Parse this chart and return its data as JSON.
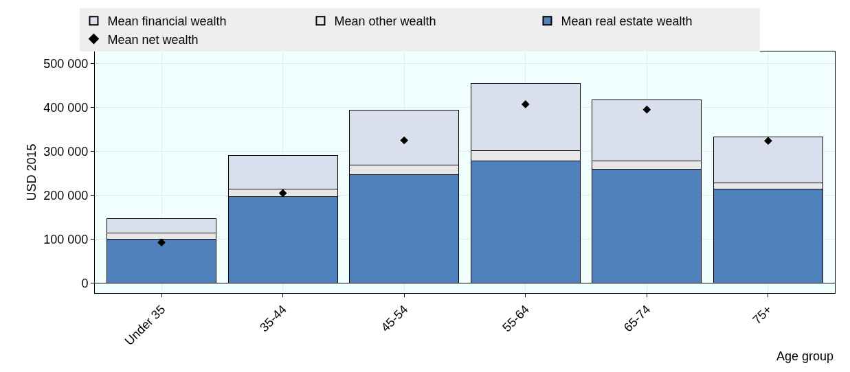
{
  "chart_data": {
    "type": "bar",
    "stacked": true,
    "ylabel": "USD 2015",
    "xlabel": "Age group",
    "categories": [
      "Under 35",
      "35-44",
      "45-54",
      "55-64",
      "65-74",
      "75+"
    ],
    "series": [
      {
        "name": "Mean real estate wealth",
        "color": "#4f81bd",
        "values": [
          101000,
          197000,
          247000,
          279000,
          259000,
          215000
        ]
      },
      {
        "name": "Mean other wealth",
        "color": "#e8e8e8",
        "values": [
          13000,
          18000,
          22000,
          23000,
          20000,
          13000
        ]
      },
      {
        "name": "Mean financial wealth",
        "color": "#d9dfec",
        "values": [
          33000,
          75000,
          124000,
          152000,
          138000,
          105000
        ]
      },
      {
        "name": "Mean net wealth",
        "type": "scatter",
        "marker": "diamond",
        "color": "#000000",
        "values": [
          93000,
          205000,
          325000,
          407000,
          395000,
          324000
        ]
      }
    ],
    "ylim": [
      -22000,
      527000
    ],
    "yticks": [
      0,
      {
        "value": 100000,
        "label": "100 000"
      },
      {
        "value": 200000,
        "label": "200 000"
      },
      {
        "value": 300000,
        "label": "300 000"
      },
      {
        "value": 400000,
        "label": "400 000"
      },
      {
        "value": 500000,
        "label": "500 000"
      }
    ],
    "legend": "top",
    "grid": true
  }
}
